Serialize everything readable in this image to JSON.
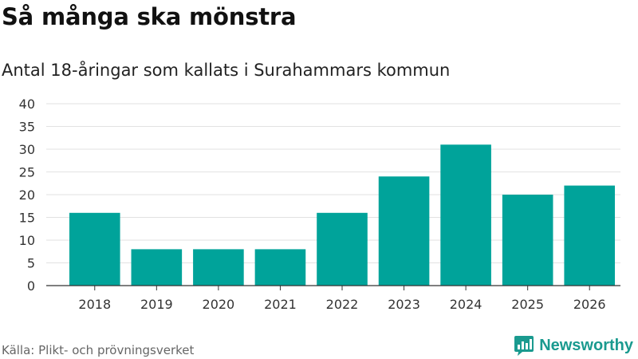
{
  "header": {
    "title": "Så många ska mönstra",
    "subtitle": "Antal 18-åringar som kallats i Surahammars kommun"
  },
  "footer": {
    "source": "Källa: Plikt- och prövningsverket",
    "brand": "Newsworthy",
    "brand_icon": "newsworthy-logo-icon"
  },
  "colors": {
    "bar": "#00a39a",
    "grid": "#e2e2e2",
    "axis": "#333333",
    "brand": "#1a9a8f"
  },
  "chart_data": {
    "type": "bar",
    "categories": [
      "2018",
      "2019",
      "2020",
      "2021",
      "2022",
      "2023",
      "2024",
      "2025",
      "2026"
    ],
    "values": [
      16,
      8,
      8,
      8,
      16,
      24,
      31,
      20,
      22
    ],
    "yticks": [
      0,
      5,
      10,
      15,
      20,
      25,
      30,
      35,
      40
    ],
    "ylim": [
      0,
      40
    ],
    "title": "Så många ska mönstra",
    "subtitle": "Antal 18-åringar som kallats i Surahammars kommun",
    "xlabel": "",
    "ylabel": "",
    "grid": true,
    "legend": "none"
  }
}
